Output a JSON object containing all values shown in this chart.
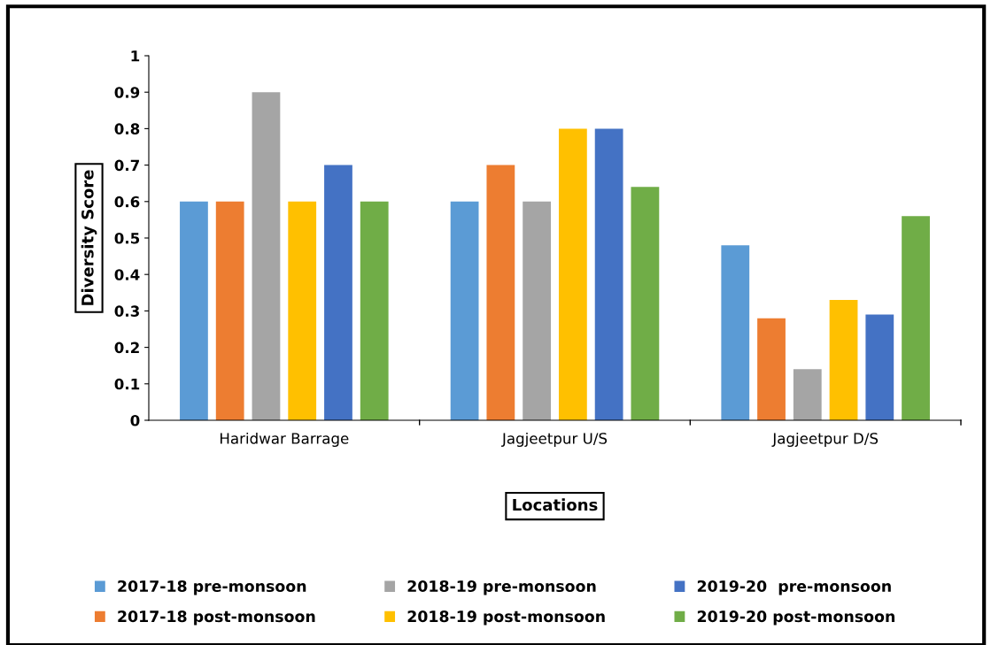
{
  "chart_data": {
    "type": "bar",
    "xlabel": "Locations",
    "ylabel": "Diversity Score",
    "categories": [
      "Haridwar Barrage",
      "Jagjeetpur U/S",
      "Jagjeetpur D/S"
    ],
    "series": [
      {
        "name": "2017-18 pre-monsoon",
        "color": "#5b9bd5",
        "values": [
          0.6,
          0.6,
          0.48
        ]
      },
      {
        "name": "2017-18 post-monsoon",
        "color": "#ed7d31",
        "values": [
          0.6,
          0.7,
          0.28
        ]
      },
      {
        "name": "2018-19 pre-monsoon",
        "color": "#a5a5a5",
        "values": [
          0.9,
          0.6,
          0.14
        ]
      },
      {
        "name": "2018-19 post-monsoon",
        "color": "#ffc000",
        "values": [
          0.6,
          0.8,
          0.33
        ]
      },
      {
        "name": "2019-20  pre-monsoon",
        "color": "#4472c4",
        "values": [
          0.7,
          0.8,
          0.29
        ]
      },
      {
        "name": "2019-20 post-monsoon",
        "color": "#70ad47",
        "values": [
          0.6,
          0.64,
          0.56
        ]
      }
    ],
    "ylim": [
      0,
      1
    ],
    "yticks": [
      0,
      0.1,
      0.2,
      0.3,
      0.4,
      0.5,
      0.6,
      0.7,
      0.8,
      0.9,
      1
    ],
    "grid": false,
    "legend": "bottom"
  }
}
